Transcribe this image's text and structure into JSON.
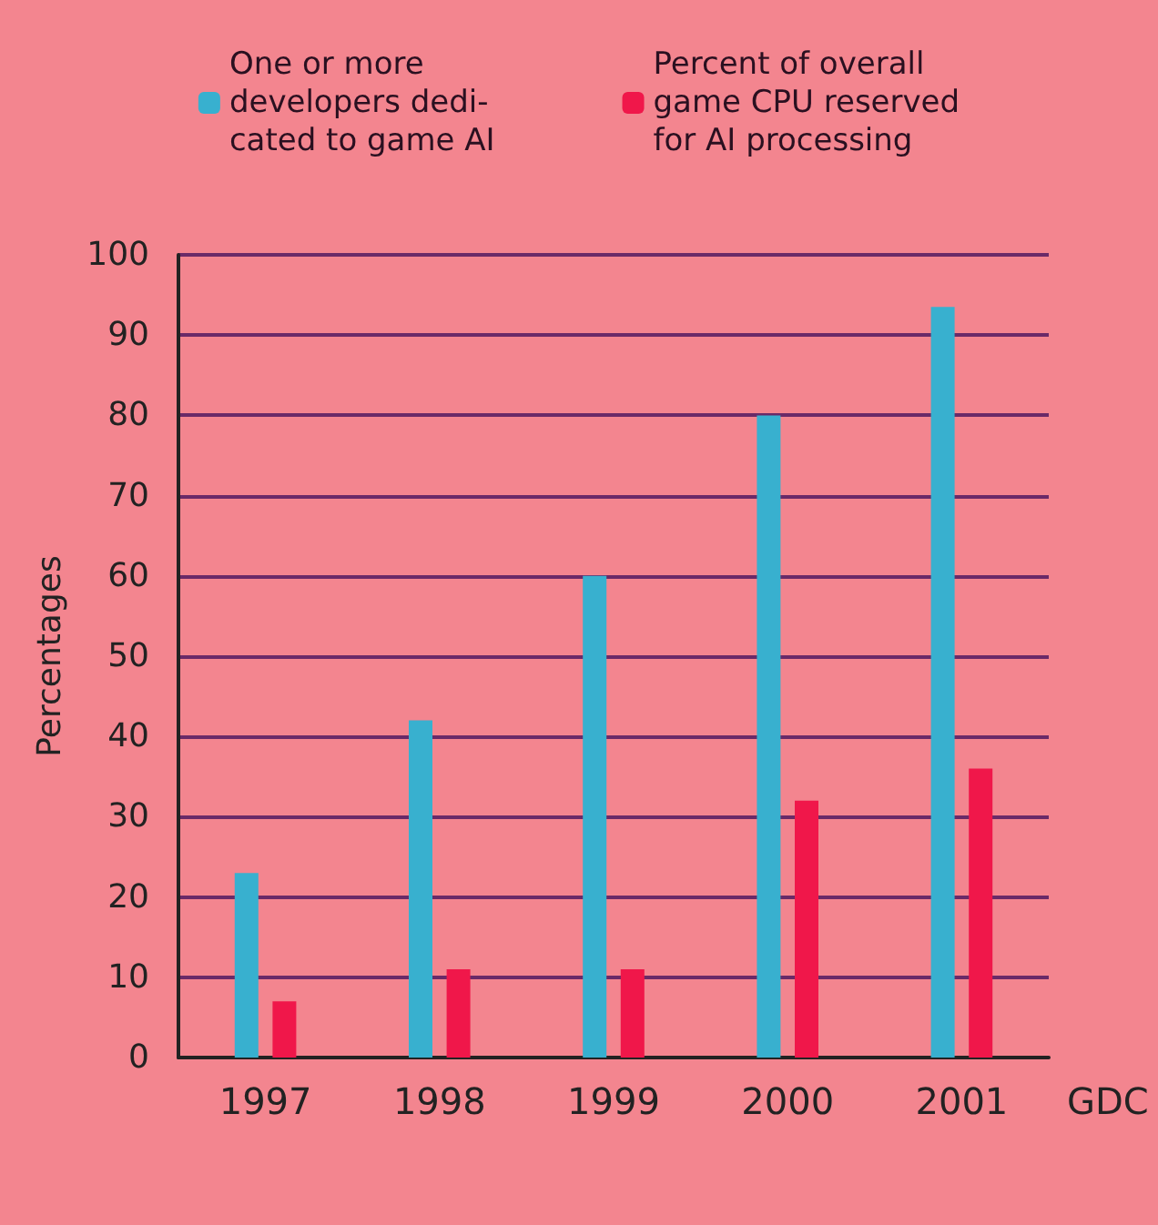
{
  "chart_data": {
    "type": "bar",
    "xlabel": "GDC",
    "ylabel": "Percentages",
    "categories": [
      "1997",
      "1998",
      "1999",
      "2000",
      "2001"
    ],
    "series": [
      {
        "name": "One or more\ndevelopers dedi-\ncated to game AI",
        "color": "#38b0cf",
        "values": [
          23,
          42,
          60,
          80,
          93.5
        ]
      },
      {
        "name": "Percent of overall\ngame CPU reserved\nfor AI processing",
        "color": "#f0174a",
        "values": [
          7,
          11,
          11,
          32,
          36
        ]
      }
    ],
    "ylim": [
      0,
      100
    ],
    "yticks": [
      0,
      10,
      20,
      30,
      40,
      50,
      60,
      70,
      80,
      90,
      100
    ],
    "grid": "y",
    "legend": "top"
  }
}
